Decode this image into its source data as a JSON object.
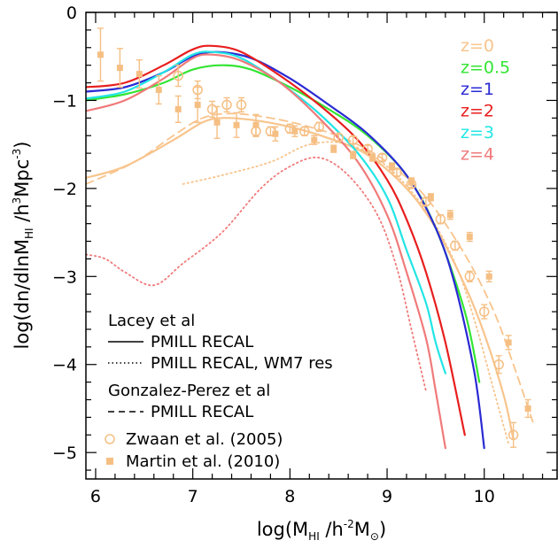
{
  "chart_data": {
    "type": "line",
    "xlabel": {
      "main": "log(M",
      "sub": "HI",
      "rest": " /h",
      "sup": "-2",
      "tail": "M",
      "subsym": "⊙",
      "close": ")"
    },
    "ylabel": {
      "main": "log(dn/dlnM",
      "sub": "HI",
      "rest": " /h",
      "sup": "3",
      "tail": "Mpc",
      "sup2": "-3",
      "close": ")"
    },
    "xlim": [
      5.9,
      10.75
    ],
    "ylim": [
      -5.3,
      0
    ],
    "x_ticks": [
      6,
      7,
      8,
      9,
      10
    ],
    "y_ticks": [
      0,
      -1,
      -2,
      -3,
      -4,
      -5
    ],
    "colors": {
      "z0": "#f8c48c",
      "z0.5": "#33e533",
      "z1": "#2a2ad4",
      "z2": "#e81e1e",
      "z3": "#22e5e5",
      "z4": "#f07a7a",
      "obs": "#f5bf84"
    },
    "redshift_legend": [
      {
        "label": "z=0",
        "color": "#f8c48c"
      },
      {
        "label": "z=0.5",
        "color": "#33e533"
      },
      {
        "label": "z=1",
        "color": "#2a2ad4"
      },
      {
        "label": "z=2",
        "color": "#e81e1e"
      },
      {
        "label": "z=3",
        "color": "#22e5e5"
      },
      {
        "label": "z=4",
        "color": "#f07a7a"
      }
    ],
    "legend": {
      "group1_title": "Lacey et al",
      "solid_label": "PMILL RECAL",
      "dotted_label": "PMILL RECAL, WM7 res",
      "group2_title": "Gonzalez-Perez et al",
      "dashed_label": "PMILL RECAL",
      "zwaan_label": "Zwaan et al. (2005)",
      "martin_label": "Martin et al. (2010)"
    },
    "series": [
      {
        "name": "z=0",
        "style": "solid",
        "color": "#f8c48c",
        "x": [
          5.9,
          6.3,
          6.8,
          7.1,
          7.3,
          7.6,
          8.0,
          8.4,
          8.8,
          9.2,
          9.5,
          9.8,
          10.0,
          10.2,
          10.3
        ],
        "y": [
          -1.88,
          -1.75,
          -1.45,
          -1.25,
          -1.2,
          -1.22,
          -1.3,
          -1.43,
          -1.62,
          -2.0,
          -2.45,
          -3.1,
          -3.65,
          -4.35,
          -4.85
        ]
      },
      {
        "name": "z=0",
        "style": "dashed",
        "color": "#f8c48c",
        "x": [
          5.9,
          6.4,
          6.8,
          7.1,
          7.4,
          7.8,
          8.2,
          8.6,
          9.0,
          9.4,
          9.8,
          10.1,
          10.3,
          10.5
        ],
        "y": [
          -1.95,
          -1.7,
          -1.4,
          -1.2,
          -1.15,
          -1.2,
          -1.3,
          -1.45,
          -1.7,
          -2.1,
          -2.75,
          -3.4,
          -4.0,
          -4.65
        ]
      },
      {
        "name": "z=0",
        "style": "dotted",
        "color": "#f8c48c",
        "x": [
          6.9,
          7.3,
          7.8,
          8.2,
          8.6,
          9.0,
          9.4,
          9.7,
          9.9,
          10.1,
          10.25
        ],
        "y": [
          -1.95,
          -1.85,
          -1.7,
          -1.5,
          -1.5,
          -1.75,
          -2.25,
          -2.85,
          -3.5,
          -4.3,
          -4.9
        ]
      },
      {
        "name": "z=0.5",
        "style": "solid",
        "color": "#33e533",
        "x": [
          5.9,
          6.3,
          6.7,
          7.0,
          7.3,
          7.6,
          8.0,
          8.4,
          8.8,
          9.2,
          9.5,
          9.8,
          9.95
        ],
        "y": [
          -1.0,
          -0.93,
          -0.8,
          -0.65,
          -0.6,
          -0.65,
          -0.85,
          -1.1,
          -1.4,
          -1.85,
          -2.45,
          -3.4,
          -4.2
        ]
      },
      {
        "name": "z=1",
        "style": "solid",
        "color": "#2a2ad4",
        "x": [
          5.9,
          6.3,
          6.7,
          7.0,
          7.25,
          7.6,
          8.0,
          8.4,
          8.8,
          9.2,
          9.5,
          9.7,
          9.9,
          10.0
        ],
        "y": [
          -0.9,
          -0.85,
          -0.68,
          -0.5,
          -0.45,
          -0.52,
          -0.75,
          -1.05,
          -1.38,
          -1.85,
          -2.45,
          -3.1,
          -4.1,
          -4.95
        ]
      },
      {
        "name": "z=2",
        "style": "solid",
        "color": "#e81e1e",
        "x": [
          5.9,
          6.3,
          6.7,
          7.0,
          7.2,
          7.5,
          7.9,
          8.3,
          8.7,
          9.0,
          9.2,
          9.4,
          9.6,
          9.8
        ],
        "y": [
          -0.85,
          -0.8,
          -0.6,
          -0.42,
          -0.38,
          -0.45,
          -0.72,
          -1.05,
          -1.45,
          -1.9,
          -2.35,
          -2.95,
          -3.75,
          -4.8
        ]
      },
      {
        "name": "z=3",
        "style": "solid",
        "color": "#22e5e5",
        "x": [
          5.9,
          6.3,
          6.7,
          7.0,
          7.2,
          7.5,
          7.9,
          8.3,
          8.7,
          9.0,
          9.2,
          9.4,
          9.5,
          9.6
        ],
        "y": [
          -0.98,
          -0.9,
          -0.68,
          -0.48,
          -0.45,
          -0.52,
          -0.8,
          -1.15,
          -1.6,
          -2.1,
          -2.7,
          -3.3,
          -3.75,
          -4.1
        ]
      },
      {
        "name": "z=4",
        "style": "solid",
        "color": "#f07a7a",
        "x": [
          5.9,
          6.3,
          6.7,
          7.0,
          7.2,
          7.5,
          7.9,
          8.3,
          8.7,
          9.0,
          9.2,
          9.4,
          9.5,
          9.6
        ],
        "y": [
          -1.12,
          -1.0,
          -0.75,
          -0.52,
          -0.48,
          -0.55,
          -0.8,
          -1.2,
          -1.7,
          -2.3,
          -2.95,
          -3.7,
          -4.3,
          -4.95
        ]
      },
      {
        "name": "z=4",
        "style": "dotted",
        "color": "#f07a7a",
        "x": [
          5.9,
          6.1,
          6.3,
          6.6,
          6.9,
          7.3,
          7.7,
          8.0,
          8.3,
          8.6,
          8.9,
          9.1,
          9.25,
          9.4
        ],
        "y": [
          -2.75,
          -2.8,
          -2.95,
          -3.1,
          -2.85,
          -2.5,
          -2.0,
          -1.75,
          -1.65,
          -1.85,
          -2.3,
          -2.9,
          -3.6,
          -4.3
        ]
      }
    ],
    "zwaan_points": {
      "x": [
        6.85,
        7.05,
        7.2,
        7.35,
        7.5,
        7.65,
        7.8,
        8.0,
        8.15,
        8.3,
        8.5,
        8.65,
        8.8,
        8.95,
        9.1,
        9.25,
        9.4,
        9.55,
        9.7,
        9.85,
        10.0,
        10.15,
        10.3
      ],
      "y": [
        -0.72,
        -0.88,
        -1.1,
        -1.05,
        -1.05,
        -1.35,
        -1.35,
        -1.32,
        -1.35,
        -1.3,
        -1.42,
        -1.45,
        -1.55,
        -1.65,
        -1.82,
        -1.95,
        -2.15,
        -2.35,
        -2.65,
        -3.0,
        -3.4,
        -4.0,
        -4.8
      ],
      "err": [
        0.12,
        0.1,
        0.09,
        0.08,
        0.08,
        0.06,
        0.05,
        0.05,
        0.05,
        0.05,
        0.04,
        0.04,
        0.04,
        0.04,
        0.04,
        0.04,
        0.04,
        0.05,
        0.05,
        0.06,
        0.08,
        0.1,
        0.14
      ]
    },
    "martin_points": {
      "x": [
        6.05,
        6.25,
        6.45,
        6.65,
        6.85,
        7.05,
        7.25,
        7.45,
        7.65,
        7.85,
        8.05,
        8.25,
        8.45,
        8.65,
        8.85,
        9.05,
        9.25,
        9.45,
        9.65,
        9.85,
        10.05,
        10.25,
        10.45
      ],
      "y": [
        -0.48,
        -0.63,
        -0.7,
        -0.88,
        -1.1,
        -1.05,
        -1.25,
        -1.28,
        -1.28,
        -1.38,
        -1.35,
        -1.45,
        -1.55,
        -1.62,
        -1.65,
        -1.75,
        -1.92,
        -2.1,
        -2.3,
        -2.55,
        -3.0,
        -3.75,
        -4.5
      ],
      "err": [
        0.3,
        0.22,
        0.16,
        0.16,
        0.15,
        0.2,
        0.18,
        0.14,
        0.12,
        0.08,
        0.06,
        0.05,
        0.04,
        0.04,
        0.04,
        0.04,
        0.04,
        0.04,
        0.05,
        0.05,
        0.06,
        0.08,
        0.1
      ]
    }
  }
}
